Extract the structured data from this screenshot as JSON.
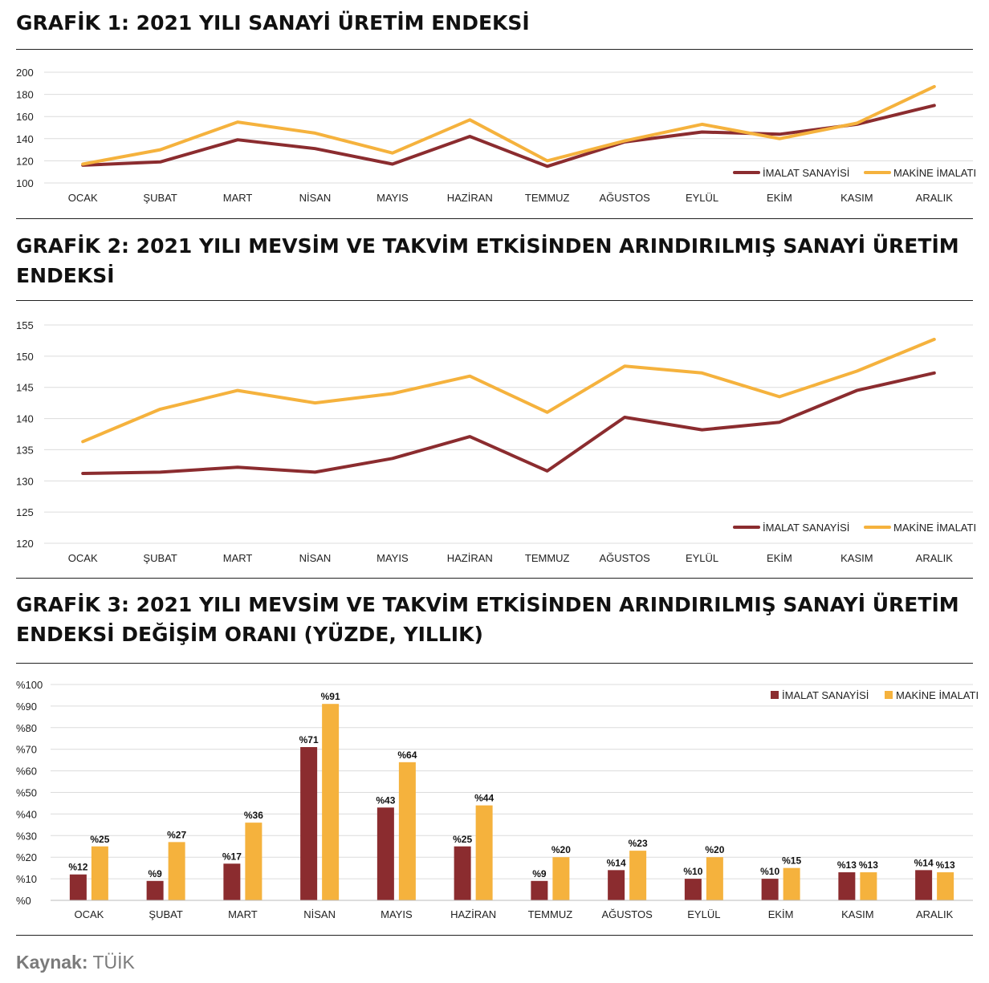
{
  "colors": {
    "imalat": "#8B2C2F",
    "makine": "#F5B23D"
  },
  "source": {
    "label": "Kaynak:",
    "value": "TÜİK"
  },
  "chart_data": [
    {
      "title": "GRAFİK 1: 2021 YILI SANAYİ ÜRETİM ENDEKSİ",
      "type": "line",
      "categories": [
        "OCAK",
        "ŞUBAT",
        "MART",
        "NİSAN",
        "MAYIS",
        "HAZİRAN",
        "TEMMUZ",
        "AĞUSTOS",
        "EYLÜL",
        "EKİM",
        "KASIM",
        "ARALIK"
      ],
      "ylim": [
        100,
        200
      ],
      "yticks": [
        "100",
        "120",
        "140",
        "160",
        "180",
        "200"
      ],
      "grid": true,
      "legend": "bottom-right",
      "series": [
        {
          "name": "İMALAT SANAYİSİ",
          "values": [
            116,
            119,
            139,
            131,
            117,
            142,
            115,
            137,
            146,
            144,
            153,
            170
          ]
        },
        {
          "name": "MAKİNE İMALATI",
          "values": [
            117,
            130,
            155,
            145,
            127,
            157,
            120,
            138,
            153,
            140,
            154,
            187
          ]
        }
      ]
    },
    {
      "title": "GRAFİK 2: 2021 YILI MEVSİM VE TAKVİM ETKİSİNDEN ARINDIRILMIŞ SANAYİ ÜRETİM ENDEKSİ",
      "type": "line",
      "categories": [
        "OCAK",
        "ŞUBAT",
        "MART",
        "NİSAN",
        "MAYIS",
        "HAZİRAN",
        "TEMMUZ",
        "AĞUSTOS",
        "EYLÜL",
        "EKİM",
        "KASIM",
        "ARALIK"
      ],
      "ylim": [
        120,
        155
      ],
      "yticks": [
        "120",
        "125",
        "130",
        "135",
        "140",
        "145",
        "150",
        "155"
      ],
      "grid": true,
      "legend": "bottom-right",
      "series": [
        {
          "name": "İMALAT SANAYİSİ",
          "values": [
            131.2,
            131.4,
            132.2,
            131.4,
            133.6,
            137.1,
            131.6,
            140.2,
            138.2,
            139.4,
            144.5,
            147.3
          ]
        },
        {
          "name": "MAKİNE İMALATI",
          "values": [
            136.3,
            141.5,
            144.5,
            142.5,
            144.0,
            146.8,
            141.0,
            148.4,
            147.3,
            143.5,
            147.6,
            152.7
          ]
        }
      ]
    },
    {
      "title": "GRAFİK 3: 2021 YILI MEVSİM VE TAKVİM ETKİSİNDEN ARINDIRILMIŞ SANAYİ ÜRETİM ENDEKSİ DEĞİŞİM ORANI (YÜZDE, YILLIK)",
      "type": "bar",
      "categories": [
        "OCAK",
        "ŞUBAT",
        "MART",
        "NİSAN",
        "MAYIS",
        "HAZİRAN",
        "TEMMUZ",
        "AĞUSTOS",
        "EYLÜL",
        "EKİM",
        "KASIM",
        "ARALIK"
      ],
      "ylim": [
        0,
        100
      ],
      "yticks": [
        "%0",
        "%10",
        "%20",
        "%30",
        "%40",
        "%50",
        "%60",
        "%70",
        "%80",
        "%90",
        "%100"
      ],
      "grid": true,
      "legend": "top-right",
      "series": [
        {
          "name": "İMALAT SANAYİSİ",
          "values": [
            12,
            9,
            17,
            71,
            43,
            25,
            9,
            14,
            10,
            10,
            13,
            14
          ],
          "labels": [
            "%12",
            "%9",
            "%17",
            "%71",
            "%43",
            "%25",
            "%9",
            "%14",
            "%10",
            "%10",
            "%13",
            "%14"
          ]
        },
        {
          "name": "MAKİNE İMALATI",
          "values": [
            25,
            27,
            36,
            91,
            64,
            44,
            20,
            23,
            20,
            15,
            13,
            13
          ],
          "labels": [
            "%25",
            "%27",
            "%36",
            "%91",
            "%64",
            "%44",
            "%20",
            "%23",
            "%20",
            "%15",
            "%13",
            "%13"
          ]
        }
      ]
    }
  ]
}
